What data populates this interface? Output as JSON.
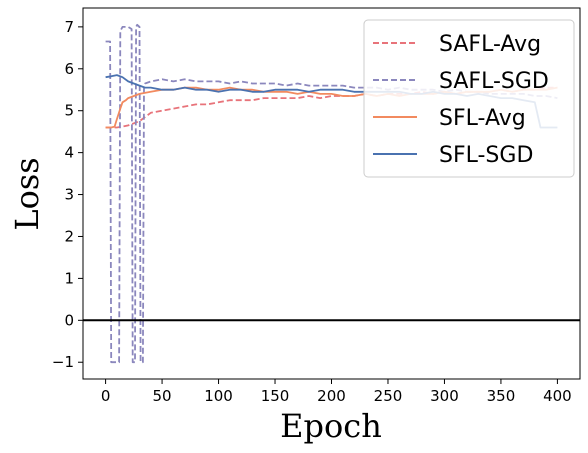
{
  "chart_data": {
    "type": "line",
    "xlabel": "Epoch",
    "ylabel": "Loss",
    "xlim": [
      -20,
      420
    ],
    "ylim": [
      -1.4,
      7.45
    ],
    "xticks": [
      0,
      50,
      100,
      150,
      200,
      250,
      300,
      350,
      400
    ],
    "yticks": [
      -1,
      0,
      1,
      2,
      3,
      4,
      5,
      6,
      7
    ],
    "hline": 0,
    "legend_position": "top-right",
    "series": [
      {
        "name": "SAFL-Avg",
        "color": "#e8737a",
        "dash": "dashed",
        "x": [
          0,
          5,
          10,
          15,
          20,
          25,
          30,
          35,
          40,
          50,
          60,
          70,
          80,
          90,
          100,
          110,
          120,
          130,
          140,
          150,
          160,
          170,
          180,
          190,
          200,
          210,
          220,
          230,
          240,
          250,
          260,
          270,
          280,
          290,
          300,
          310,
          320,
          330,
          340,
          350,
          360,
          370,
          380,
          390,
          400
        ],
        "values": [
          4.6,
          4.6,
          4.6,
          4.62,
          4.65,
          4.7,
          4.75,
          4.85,
          4.95,
          5.0,
          5.05,
          5.1,
          5.15,
          5.15,
          5.2,
          5.25,
          5.25,
          5.25,
          5.3,
          5.3,
          5.3,
          5.3,
          5.35,
          5.3,
          5.35,
          5.35,
          5.35,
          5.4,
          5.35,
          5.4,
          5.4,
          5.4,
          5.45,
          5.4,
          5.45,
          5.4,
          5.45,
          5.45,
          5.45,
          5.5,
          5.45,
          5.5,
          5.5,
          5.55,
          5.55
        ]
      },
      {
        "name": "SAFL-SGD",
        "color": "#8b87bd",
        "dash": "dashed",
        "x": [
          0,
          4,
          5,
          6,
          9,
          12,
          13,
          15,
          17,
          18,
          20,
          23,
          24,
          25,
          26,
          27,
          28,
          30,
          31,
          32,
          33,
          34,
          35,
          40,
          50,
          60,
          70,
          80,
          90,
          100,
          110,
          120,
          130,
          140,
          150,
          160,
          170,
          180,
          190,
          200,
          210,
          220,
          230,
          240,
          250,
          260,
          270,
          280,
          290,
          300,
          310,
          320,
          330,
          340,
          350,
          360,
          370,
          380,
          390,
          400
        ],
        "values": [
          6.65,
          6.65,
          -1.0,
          -1.0,
          -1.0,
          -1.0,
          6.9,
          7.0,
          7.0,
          7.0,
          7.0,
          6.95,
          -1.0,
          -1.0,
          -1.0,
          7.0,
          7.05,
          7.0,
          -1.0,
          -1.0,
          -1.0,
          5.6,
          5.65,
          5.7,
          5.75,
          5.7,
          5.75,
          5.7,
          5.7,
          5.7,
          5.65,
          5.7,
          5.65,
          5.65,
          5.65,
          5.6,
          5.65,
          5.6,
          5.6,
          5.6,
          5.6,
          5.55,
          5.55,
          5.55,
          5.5,
          5.55,
          5.5,
          5.5,
          5.5,
          5.45,
          5.5,
          5.45,
          5.45,
          5.4,
          5.4,
          5.4,
          5.4,
          5.35,
          5.35,
          5.3
        ]
      },
      {
        "name": "SFL-Avg",
        "color": "#f28a5f",
        "dash": "solid",
        "x": [
          0,
          5,
          8,
          10,
          13,
          15,
          18,
          20,
          25,
          30,
          40,
          50,
          60,
          70,
          80,
          90,
          100,
          110,
          120,
          130,
          140,
          150,
          160,
          170,
          180,
          190,
          200,
          210,
          220,
          230,
          240,
          250,
          260,
          270,
          280,
          290,
          300,
          310,
          320,
          330,
          340,
          350,
          360,
          370,
          380,
          390,
          400
        ],
        "values": [
          4.6,
          4.6,
          4.62,
          4.8,
          5.05,
          5.2,
          5.25,
          5.3,
          5.35,
          5.4,
          5.45,
          5.5,
          5.5,
          5.55,
          5.55,
          5.5,
          5.5,
          5.55,
          5.5,
          5.5,
          5.45,
          5.45,
          5.45,
          5.4,
          5.45,
          5.4,
          5.4,
          5.35,
          5.35,
          5.4,
          5.35,
          5.4,
          5.35,
          5.4,
          5.4,
          5.4,
          5.45,
          5.4,
          5.45,
          5.45,
          5.45,
          5.5,
          5.45,
          5.5,
          5.5,
          5.5,
          5.55
        ]
      },
      {
        "name": "SFL-SGD",
        "color": "#4a72b0",
        "dash": "solid",
        "x": [
          0,
          5,
          10,
          15,
          20,
          25,
          30,
          35,
          40,
          50,
          60,
          70,
          80,
          90,
          100,
          110,
          120,
          130,
          140,
          150,
          160,
          170,
          180,
          190,
          200,
          210,
          220,
          230,
          240,
          250,
          260,
          270,
          280,
          290,
          300,
          310,
          320,
          330,
          340,
          350,
          360,
          370,
          380,
          385,
          390,
          400
        ],
        "values": [
          5.8,
          5.82,
          5.85,
          5.8,
          5.7,
          5.65,
          5.6,
          5.55,
          5.55,
          5.5,
          5.5,
          5.55,
          5.5,
          5.5,
          5.45,
          5.5,
          5.5,
          5.45,
          5.45,
          5.5,
          5.5,
          5.5,
          5.45,
          5.5,
          5.5,
          5.5,
          5.45,
          5.45,
          5.45,
          5.45,
          5.45,
          5.4,
          5.4,
          5.45,
          5.4,
          5.4,
          5.35,
          5.4,
          5.35,
          5.3,
          5.3,
          5.25,
          5.2,
          4.6,
          4.6,
          4.6
        ]
      }
    ]
  }
}
